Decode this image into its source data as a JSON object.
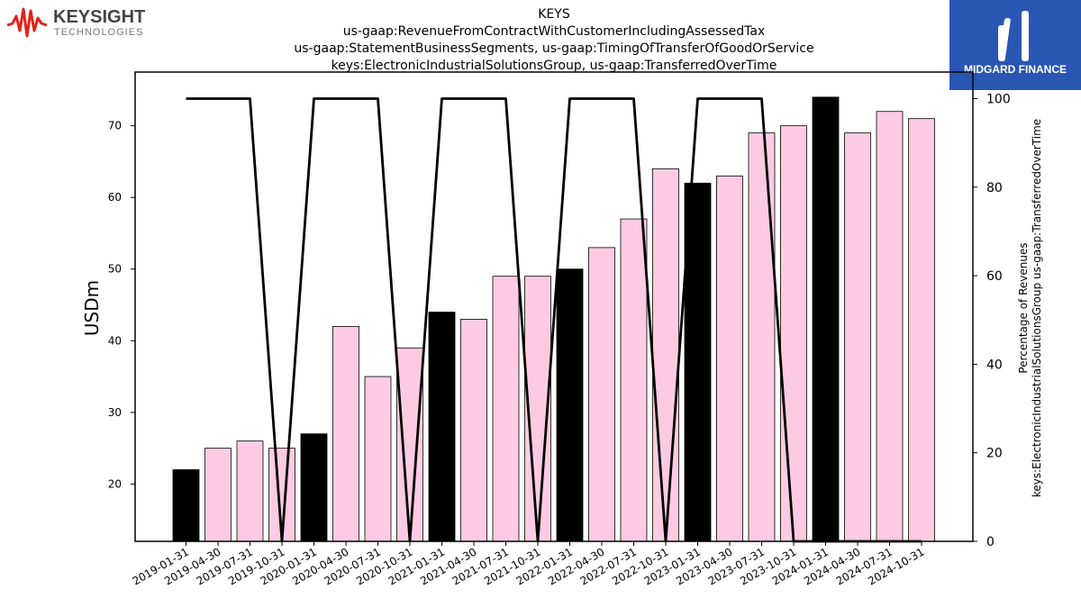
{
  "brand_left": {
    "name": "KEYSIGHT",
    "sub": "TECHNOLOGIES",
    "color": "#e2231a"
  },
  "brand_right": {
    "name": "MIDGARD FINANCE",
    "color": "#2a56b3"
  },
  "chart_data": {
    "type": "bar",
    "title_lines": [
      "KEYS",
      "us-gaap:RevenueFromContractWithCustomerIncludingAssessedTax",
      "us-gaap:StatementBusinessSegments, us-gaap:TimingOfTransferOfGoodOrService",
      "keys:ElectronicIndustrialSolutionsGroup, us-gaap:TransferredOverTime"
    ],
    "ylabel": "USDm",
    "y2label_lines": [
      "Percentage of Revenues",
      "keys:ElectronicIndustrialSolutionsGroup us-gaap:TransferredOverTime"
    ],
    "categories": [
      "2019-01-31",
      "2019-04-30",
      "2019-07-31",
      "2019-10-31",
      "2020-01-31",
      "2020-04-30",
      "2020-07-31",
      "2020-10-31",
      "2021-01-31",
      "2021-04-30",
      "2021-07-31",
      "2021-10-31",
      "2022-01-31",
      "2022-04-30",
      "2022-07-31",
      "2022-10-31",
      "2023-01-31",
      "2023-04-30",
      "2023-07-31",
      "2023-10-31",
      "2024-01-31",
      "2024-04-30",
      "2024-07-31",
      "2024-10-31"
    ],
    "values": [
      22,
      25,
      26,
      25,
      27,
      42,
      35,
      39,
      44,
      43,
      49,
      49,
      50,
      53,
      57,
      64,
      62,
      63,
      69,
      70,
      74,
      69,
      72,
      71
    ],
    "highlight": [
      true,
      false,
      false,
      false,
      true,
      false,
      false,
      false,
      true,
      false,
      false,
      false,
      true,
      false,
      false,
      false,
      true,
      false,
      false,
      false,
      true,
      false,
      false,
      false
    ],
    "percentage": [
      100,
      100,
      100,
      0,
      100,
      100,
      100,
      0,
      100,
      100,
      100,
      0,
      100,
      100,
      100,
      0,
      100,
      100,
      100,
      0,
      0,
      0,
      0,
      0
    ],
    "ylim": [
      12,
      77.5
    ],
    "yticks": [
      20,
      30,
      40,
      50,
      60,
      70
    ],
    "y2lim": [
      0,
      106
    ],
    "y2ticks": [
      0,
      20,
      40,
      60,
      80,
      100
    ],
    "colors": {
      "bar": "#fccbe3",
      "highlight": "#000000",
      "line": "#000000"
    }
  }
}
